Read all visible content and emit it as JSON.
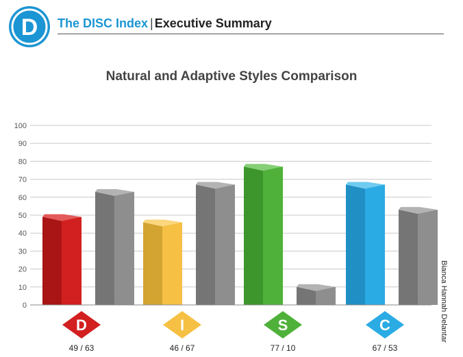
{
  "header": {
    "logo_letter": "D",
    "brand": "The DISC Index",
    "separator": "|",
    "section": "Executive Summary"
  },
  "side_label": "Bianca Hannah Delantar",
  "chart_data": {
    "type": "bar",
    "title": "Natural and Adaptive Styles Comparison",
    "ylim": [
      0,
      100
    ],
    "yticks": [
      0,
      10,
      20,
      30,
      40,
      50,
      60,
      70,
      80,
      90,
      100
    ],
    "grid": true,
    "categories": [
      "D",
      "I",
      "S",
      "C"
    ],
    "series": [
      {
        "values": [
          49,
          46,
          77,
          67
        ]
      },
      {
        "values": [
          63,
          67,
          10,
          53
        ]
      }
    ],
    "category_labels": [
      "49 / 63",
      "46 / 67",
      "77 / 10",
      "67 / 53"
    ],
    "colors": {
      "D": {
        "front": "#d21f1f",
        "side": "#a91515",
        "top": "#e35a5a"
      },
      "I": {
        "front": "#f5c043",
        "side": "#d3a432",
        "top": "#fbd67d"
      },
      "S": {
        "front": "#4fb13a",
        "side": "#3c962b",
        "top": "#86cf76"
      },
      "C": {
        "front": "#2aabe4",
        "side": "#1f8fc4",
        "top": "#6fcbef"
      },
      "adaptive": {
        "front": "#8e8e8e",
        "side": "#757575",
        "top": "#b3b3b3"
      },
      "logo": "#1b95d3"
    }
  }
}
